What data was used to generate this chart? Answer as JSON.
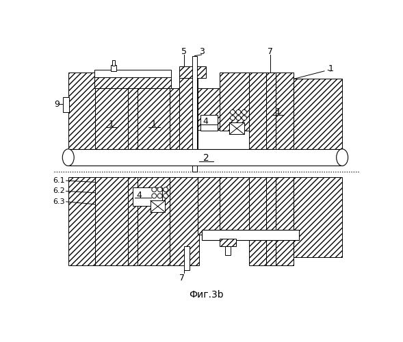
{
  "title": "Фиг.3b",
  "bg_color": "#ffffff",
  "fig_width": 5.89,
  "fig_height": 5.0,
  "dpi": 100
}
